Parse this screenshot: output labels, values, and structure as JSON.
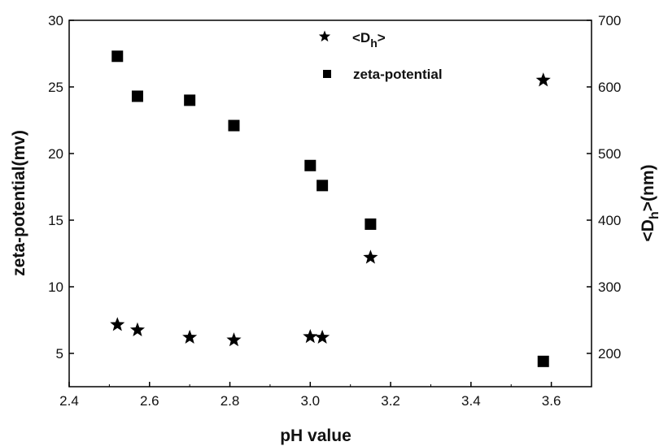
{
  "chart_data": {
    "type": "scatter",
    "xlabel": "pH value",
    "ylabel_left": "zeta-potential(mv)",
    "ylabel_right": "<Dh>(nm)",
    "ylabel_right_parts": {
      "pre": "<D",
      "sub": "h",
      "post": ">(nm)"
    },
    "xlim": [
      2.4,
      3.7
    ],
    "ylim_left": [
      2.5,
      30
    ],
    "ylim_right": [
      150,
      700
    ],
    "x_ticks": [
      2.4,
      2.6,
      2.8,
      3.0,
      3.2,
      3.4,
      3.6
    ],
    "x_tick_labels": [
      "2.4",
      "2.6",
      "2.8",
      "3.0",
      "3.2",
      "3.4",
      "3.6"
    ],
    "y_left_ticks": [
      5,
      10,
      15,
      20,
      25,
      30
    ],
    "y_left_tick_labels": [
      "5",
      "10",
      "15",
      "20",
      "25",
      "30"
    ],
    "y_right_ticks": [
      200,
      300,
      400,
      500,
      600,
      700
    ],
    "y_right_tick_labels": [
      "200",
      "300",
      "400",
      "500",
      "600",
      "700"
    ],
    "grid": false,
    "legend_placement": "top-center",
    "series": [
      {
        "name": "<Dh>",
        "name_parts": {
          "pre": "<D",
          "sub": "h",
          "post": ">"
        },
        "marker": "star",
        "axis": "right",
        "points": [
          {
            "x": 2.52,
            "y": 243
          },
          {
            "x": 2.57,
            "y": 235
          },
          {
            "x": 2.7,
            "y": 224
          },
          {
            "x": 2.81,
            "y": 220
          },
          {
            "x": 3.0,
            "y": 225
          },
          {
            "x": 3.03,
            "y": 224
          },
          {
            "x": 3.15,
            "y": 344
          },
          {
            "x": 3.58,
            "y": 610
          }
        ]
      },
      {
        "name": "zeta-potential",
        "marker": "square",
        "axis": "left",
        "points": [
          {
            "x": 2.52,
            "y": 27.3
          },
          {
            "x": 2.57,
            "y": 24.3
          },
          {
            "x": 2.7,
            "y": 24.0
          },
          {
            "x": 2.81,
            "y": 22.1
          },
          {
            "x": 3.0,
            "y": 19.1
          },
          {
            "x": 3.03,
            "y": 17.6
          },
          {
            "x": 3.15,
            "y": 14.7
          },
          {
            "x": 3.58,
            "y": 4.4
          }
        ]
      }
    ],
    "colors": {
      "marker": "#000000",
      "axis": "#000000"
    }
  }
}
